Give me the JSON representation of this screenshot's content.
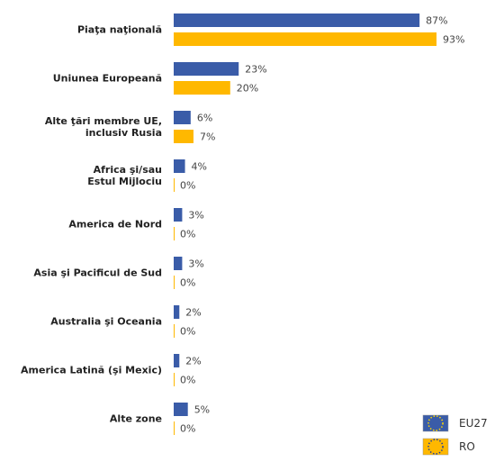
{
  "chart_data": {
    "type": "bar",
    "orientation": "horizontal",
    "categories": [
      "Piaţa naţională",
      "Uniunea Europeană",
      "Alte ţări membre UE,\ninclusiv Rusia",
      "Africa şi/sau\nEstul Mijlociu",
      "America de Nord",
      "Asia şi Pacificul de Sud",
      "Australia şi Oceania",
      "America Latină (şi Mexic)",
      "Alte zone"
    ],
    "series": [
      {
        "name": "EU27",
        "color": "#3a5ca8",
        "values": [
          87,
          23,
          6,
          4,
          3,
          3,
          2,
          2,
          5
        ],
        "value_labels": [
          "87%",
          "23%",
          "6%",
          "4%",
          "3%",
          "3%",
          "2%",
          "2%",
          "5%"
        ]
      },
      {
        "name": "RO",
        "color": "#ffb800",
        "values": [
          93,
          20,
          7,
          0,
          0,
          0,
          0,
          0,
          0
        ],
        "value_labels": [
          "93%",
          "20%",
          "7%",
          "0%",
          "0%",
          "0%",
          "0%",
          "0%",
          "0%"
        ]
      }
    ],
    "legend": "bottom-right"
  }
}
